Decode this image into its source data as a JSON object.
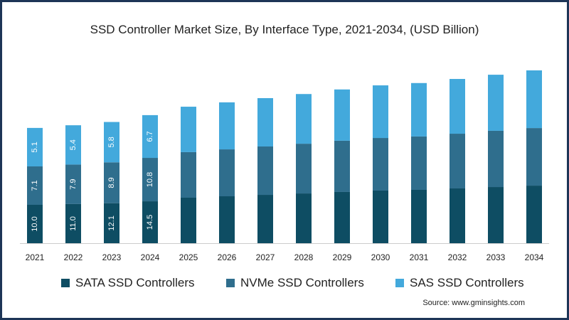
{
  "chart_data": {
    "type": "bar",
    "stacked": true,
    "title": "SSD Controller  Market Size, By Interface Type, 2021-2034, (USD Billion)",
    "xlabel": "",
    "ylabel": "",
    "categories": [
      "2021",
      "2022",
      "2023",
      "2024",
      "2025",
      "2026",
      "2027",
      "2028",
      "2029",
      "2030",
      "2031",
      "2032",
      "2033",
      "2034"
    ],
    "series": [
      {
        "name": "SATA SSD Controllers",
        "color": "#0e4d63",
        "values": [
          10.0,
          11.0,
          12.1,
          14.5,
          19.1,
          20.9,
          22.7,
          24.5,
          26.4,
          28.2,
          29.1,
          30.9,
          32.7,
          34.5
        ],
        "labeled": [
          true,
          true,
          true,
          true,
          false,
          false,
          false,
          false,
          false,
          false,
          false,
          false,
          false,
          false
        ]
      },
      {
        "name": "NVMe SSD Controllers",
        "color": "#2f6e8d",
        "values": [
          7.1,
          7.9,
          8.9,
          10.8,
          12.4,
          13.4,
          14.5,
          15.5,
          16.6,
          17.6,
          18.2,
          19.2,
          20.3,
          21.3
        ],
        "labeled": [
          true,
          true,
          true,
          true,
          false,
          false,
          false,
          false,
          false,
          false,
          false,
          false,
          false,
          false
        ]
      },
      {
        "name": "SAS SSD Controllers",
        "color": "#43a9dc",
        "values": [
          5.1,
          5.4,
          5.8,
          6.7,
          7.7,
          8.3,
          8.8,
          9.3,
          9.9,
          10.4,
          10.7,
          11.2,
          11.7,
          12.3
        ],
        "labeled": [
          true,
          true,
          true,
          true,
          false,
          false,
          false,
          false,
          false,
          false,
          false,
          false,
          false,
          false
        ]
      }
    ],
    "legend_position": "bottom",
    "grid": false
  },
  "source": "Source: www.gminsights.com"
}
